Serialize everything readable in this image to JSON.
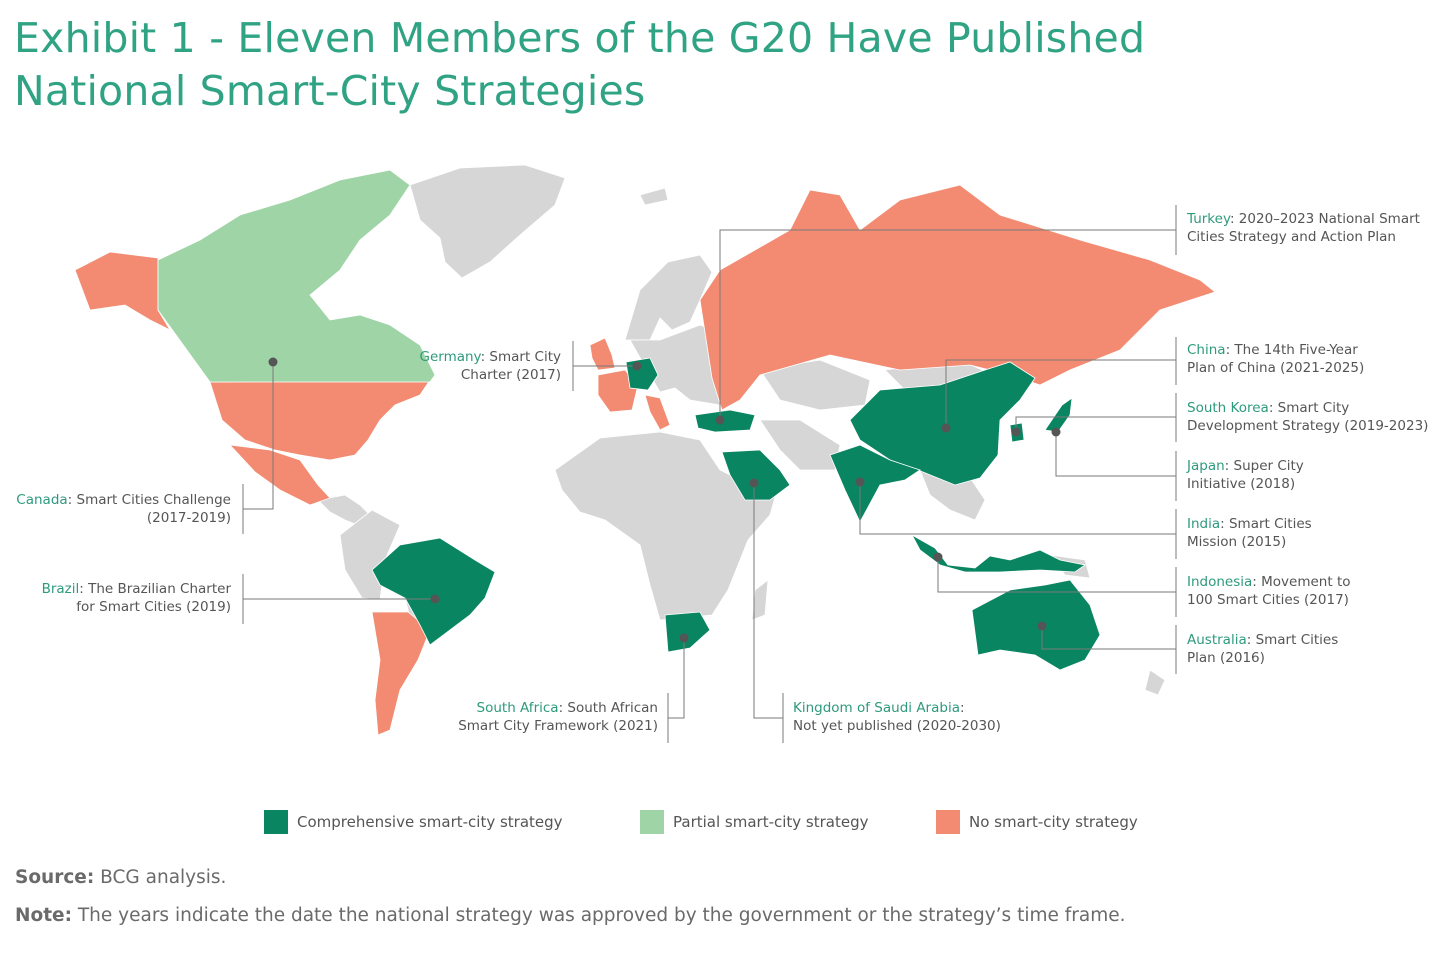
{
  "title": "Exhibit 1 - Eleven Members of the G20 Have Published National Smart-City Strategies",
  "colors": {
    "comprehensive": "#0a8562",
    "partial": "#9fd4a6",
    "none": "#f28b71",
    "other": "#d6d6d6",
    "accent": "#2e9a7c"
  },
  "callouts": [
    {
      "country": "Turkey",
      "text_1": "2020–2023 National Smart",
      "text_2": "Cities Strategy and Action Plan"
    },
    {
      "country": "China",
      "text_1": "The 14th Five-Year",
      "text_2": "Plan of China (2021-2025)"
    },
    {
      "country": "South Korea",
      "text_1": "Smart City",
      "text_2": "Development Strategy (2019-2023)"
    },
    {
      "country": "Japan",
      "text_1": "Super City",
      "text_2": "Initiative (2018)"
    },
    {
      "country": "India",
      "text_1": "Smart Cities",
      "text_2": "Mission (2015)"
    },
    {
      "country": "Indonesia",
      "text_1": "Movement to",
      "text_2": "100 Smart Cities (2017)"
    },
    {
      "country": "Australia",
      "text_1": "Smart Cities",
      "text_2": "Plan (2016)"
    },
    {
      "country": "Germany",
      "text_1": "Smart City",
      "text_2": "Charter (2017)"
    },
    {
      "country": "Canada",
      "text_1": "Smart Cities Challenge",
      "text_2": "(2017-2019)"
    },
    {
      "country": "Brazil",
      "text_1": "The Brazilian Charter",
      "text_2": "for Smart Cities (2019)"
    },
    {
      "country": "South Africa",
      "text_1": "South African",
      "text_2": "Smart City Framework (2021)"
    },
    {
      "country": "Kingdom of Saudi Arabia",
      "text_1": "",
      "text_2": "Not yet published (2020-2030)"
    }
  ],
  "legend": [
    {
      "label": "Comprehensive smart-city strategy",
      "color": "#0a8562"
    },
    {
      "label": "Partial smart-city strategy",
      "color": "#9fd4a6"
    },
    {
      "label": "No smart-city strategy",
      "color": "#f28b71"
    }
  ],
  "source": {
    "label": "Source:",
    "text": "BCG analysis."
  },
  "note": {
    "label": "Note:",
    "text": "The years indicate the date the national strategy was approved by the government or the strategy’s time frame."
  }
}
